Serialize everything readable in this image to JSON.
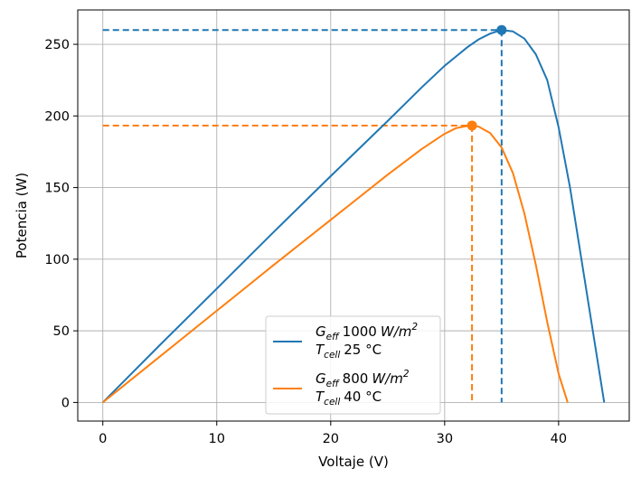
{
  "chart_data": {
    "type": "line",
    "xlabel": "Voltaje (V)",
    "ylabel": "Potencia (W)",
    "xlim": [
      -2.2,
      46.2
    ],
    "ylim": [
      -13,
      274
    ],
    "xticks": [
      0,
      10,
      20,
      30,
      40
    ],
    "yticks": [
      0,
      50,
      100,
      150,
      200,
      250
    ],
    "grid": true,
    "legend_position": "lower center",
    "series": [
      {
        "name": "G_eff 1000 W/m2, T_cell 25 °C",
        "legend_line1": {
          "symbol": "G",
          "sub": "eff",
          "value": "1000",
          "unit": "W/m",
          "sup": "2"
        },
        "legend_line2": {
          "symbol": "T",
          "sub": "cell",
          "value": "25 °C"
        },
        "color": "#1f77b4",
        "x": [
          0,
          5,
          10,
          15,
          20,
          25,
          28,
          30,
          32,
          33,
          34,
          35,
          36,
          37,
          38,
          39,
          40,
          41,
          42,
          43,
          44
        ],
        "y": [
          0,
          40,
          79.5,
          119,
          158,
          196.5,
          220,
          235,
          248,
          253.5,
          257.5,
          260,
          259,
          254,
          243,
          225,
          192,
          150,
          100,
          50,
          0
        ],
        "mpp": {
          "x": 35,
          "y": 260
        }
      },
      {
        "name": "G_eff 800 W/m2, T_cell 40 °C",
        "legend_line1": {
          "symbol": "G",
          "sub": "eff",
          "value": "800",
          "unit": "W/m",
          "sup": "2"
        },
        "legend_line2": {
          "symbol": "T",
          "sub": "cell",
          "value": "40 °C"
        },
        "color": "#ff7f0e",
        "x": [
          0,
          5,
          10,
          15,
          20,
          25,
          28,
          30,
          31,
          32,
          32.4,
          33,
          34,
          35,
          36,
          37,
          38,
          39,
          40,
          40.8
        ],
        "y": [
          0,
          32,
          64,
          96,
          127.5,
          159,
          177,
          187.5,
          191.5,
          193,
          193.3,
          192.5,
          188,
          178,
          160,
          132,
          96,
          56,
          20,
          0
        ],
        "mpp": {
          "x": 32.4,
          "y": 193.3
        }
      }
    ]
  }
}
